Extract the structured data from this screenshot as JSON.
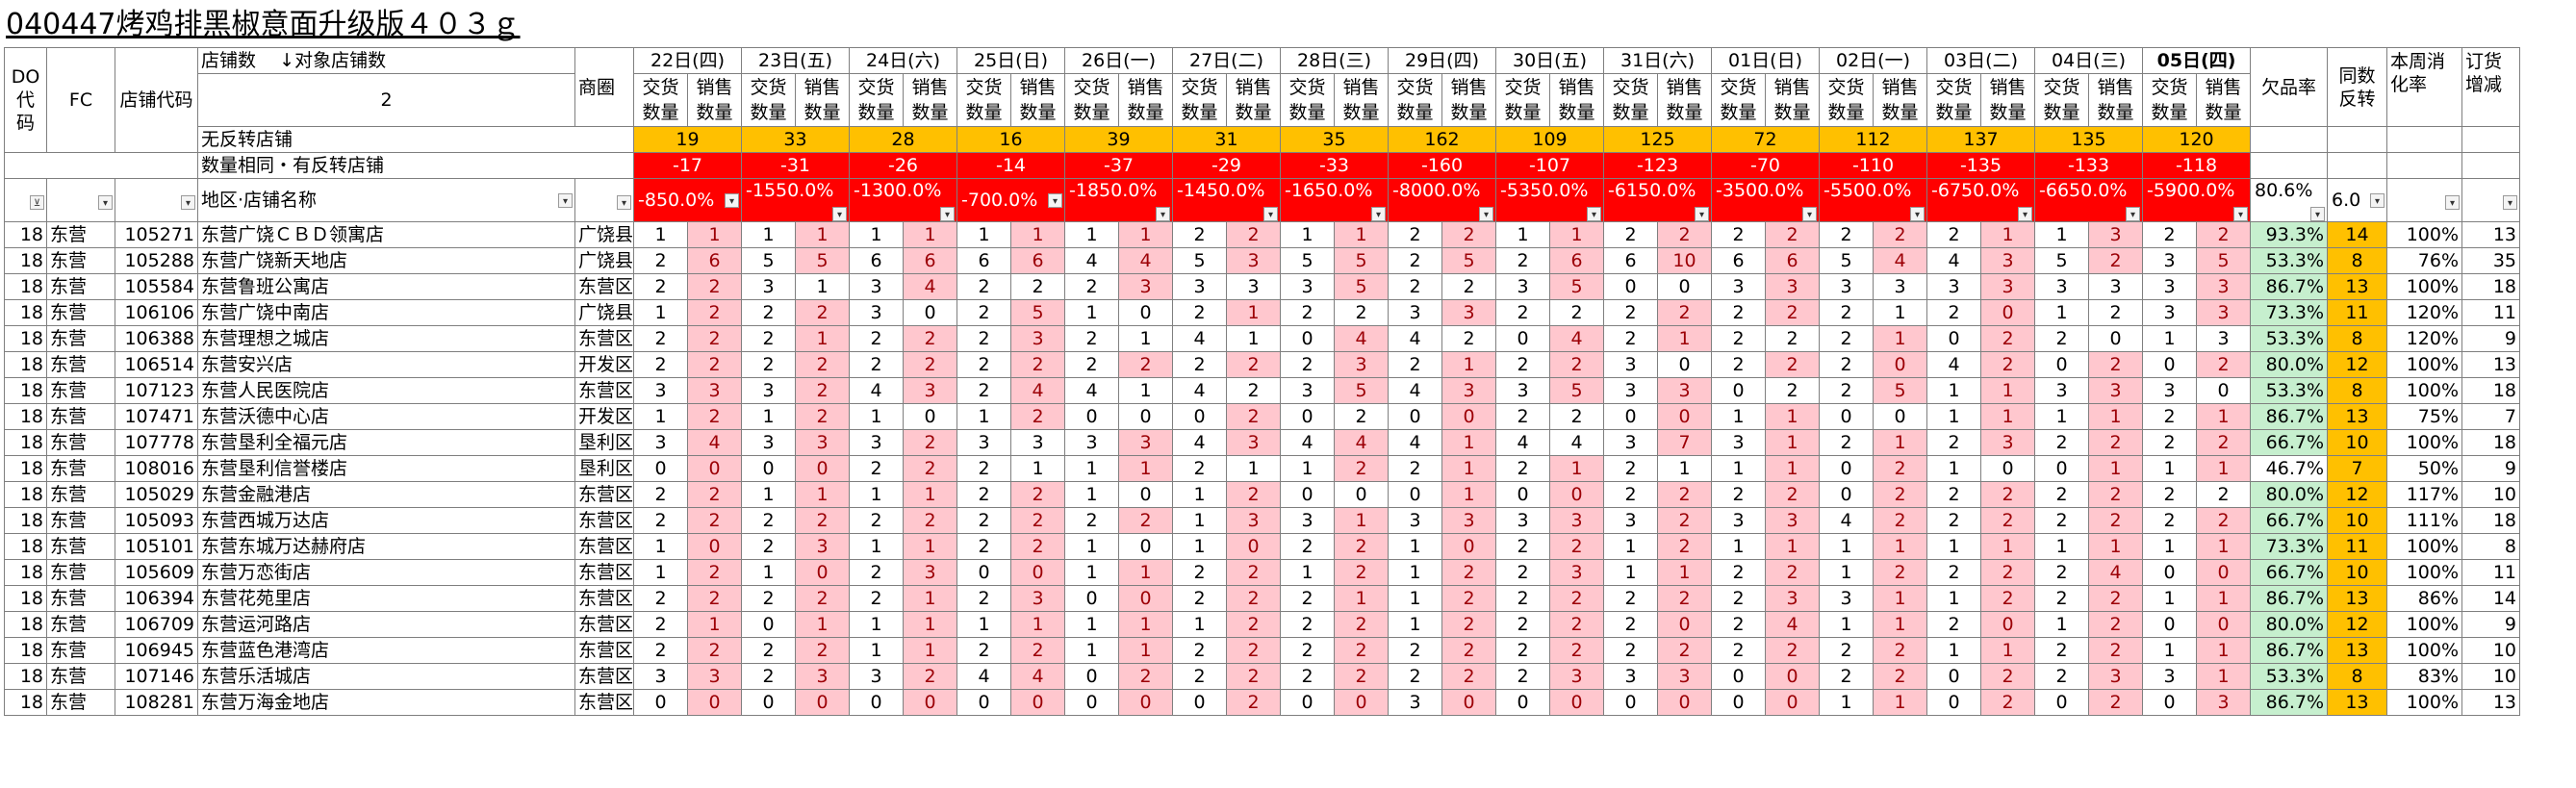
{
  "title": "040447烤鸡排黑椒意面升级版４０３ｇ",
  "header": {
    "do_code": "DO\n代\n码",
    "fc": "FC",
    "store_code": "店铺代码",
    "store_count_label": "店铺数",
    "target_store_label": "↓对象店铺数",
    "store_count_value": "2",
    "no_reversal_label": "无反转店铺",
    "same_qty_label": "数量相同・有反转店铺",
    "region_label": "地区·店铺名称",
    "commerce_area": "商圈",
    "delivery_qty": "交货\n数量",
    "sales_qty": "销售\n数量",
    "defect_rate": "欠品率",
    "same_reversal": "同数\n反转",
    "weekly_rate": "本周消\n化率",
    "order_change": "订货\n增减"
  },
  "dates": [
    "22日(四)",
    "23日(五)",
    "24日(六)",
    "25日(日)",
    "26日(一)",
    "27日(二)",
    "28日(三)",
    "29日(四)",
    "30日(五)",
    "31日(六)",
    "01日(日)",
    "02日(一)",
    "03日(二)",
    "04日(三)",
    "05日(四)"
  ],
  "no_reversal": [
    "19",
    "33",
    "28",
    "16",
    "39",
    "31",
    "35",
    "162",
    "109",
    "125",
    "72",
    "112",
    "137",
    "135",
    "120"
  ],
  "same_qty": [
    "-17",
    "-31",
    "-26",
    "-14",
    "-37",
    "-29",
    "-33",
    "-160",
    "-107",
    "-123",
    "-70",
    "-110",
    "-135",
    "-133",
    "-118"
  ],
  "region_totals": [
    "-850.0%",
    "-1550.0%",
    "-1300.0%",
    "-700.0%",
    "-1850.0%",
    "-1450.0%",
    "-1650.0%",
    "-8000.0%",
    "-5350.0%",
    "-6150.0%",
    "-3500.0%",
    "-5500.0%",
    "-6750.0%",
    "-6650.0%",
    "-5900.0%"
  ],
  "summary_defect": "80.6%",
  "summary_reversal": "6.0",
  "rows": [
    {
      "do": "18",
      "fc": "东营",
      "code": "105271",
      "name": "东营广饶ＣＢＤ领寓店",
      "area": "广饶县",
      "cells": [
        "1",
        "1",
        "1",
        "1",
        "1",
        "1",
        "1",
        "1",
        "1",
        "1",
        "2",
        "2",
        "1",
        "1",
        "2",
        "2",
        "1",
        "1",
        "2",
        "2",
        "2",
        "2",
        "2",
        "2",
        "2",
        "1",
        "1",
        "3",
        "2",
        "2"
      ],
      "defect": "93.3%",
      "rev": "14",
      "rate": "100%",
      "chg": "13"
    },
    {
      "do": "18",
      "fc": "东营",
      "code": "105288",
      "name": "东营广饶新天地店",
      "area": "广饶县",
      "cells": [
        "2",
        "6",
        "5",
        "5",
        "6",
        "6",
        "6",
        "6",
        "4",
        "4",
        "5",
        "3",
        "5",
        "5",
        "2",
        "5",
        "2",
        "6",
        "6",
        "10",
        "6",
        "6",
        "5",
        "4",
        "4",
        "3",
        "5",
        "2",
        "3",
        "5"
      ],
      "defect": "53.3%",
      "rev": "8",
      "rate": "76%",
      "chg": "35"
    },
    {
      "do": "18",
      "fc": "东营",
      "code": "105584",
      "name": "东营鲁班公寓店",
      "area": "东营区",
      "cells": [
        "2",
        "2",
        "3",
        "1",
        "3",
        "4",
        "2",
        "2",
        "2",
        "3",
        "3",
        "3",
        "3",
        "5",
        "2",
        "2",
        "3",
        "5",
        "0",
        "0",
        "3",
        "3",
        "3",
        "3",
        "3",
        "3",
        "3",
        "3",
        "3",
        "3"
      ],
      "defect": "86.7%",
      "rev": "13",
      "rate": "100%",
      "chg": "18"
    },
    {
      "do": "18",
      "fc": "东营",
      "code": "106106",
      "name": "东营广饶中南店",
      "area": "广饶县",
      "cells": [
        "1",
        "2",
        "2",
        "2",
        "3",
        "0",
        "2",
        "5",
        "1",
        "0",
        "2",
        "1",
        "2",
        "2",
        "3",
        "3",
        "2",
        "2",
        "2",
        "2",
        "2",
        "2",
        "2",
        "1",
        "2",
        "0",
        "1",
        "2",
        "3",
        "3"
      ],
      "defect": "73.3%",
      "rev": "11",
      "rate": "120%",
      "chg": "11"
    },
    {
      "do": "18",
      "fc": "东营",
      "code": "106388",
      "name": "东营理想之城店",
      "area": "东营区",
      "cells": [
        "2",
        "2",
        "2",
        "1",
        "2",
        "2",
        "2",
        "3",
        "2",
        "1",
        "4",
        "1",
        "0",
        "4",
        "4",
        "2",
        "0",
        "4",
        "2",
        "1",
        "2",
        "2",
        "2",
        "1",
        "0",
        "2",
        "2",
        "0",
        "1",
        "3"
      ],
      "defect": "53.3%",
      "rev": "8",
      "rate": "120%",
      "chg": "9"
    },
    {
      "do": "18",
      "fc": "东营",
      "code": "106514",
      "name": "东营安兴店",
      "area": "开发区",
      "cells": [
        "2",
        "2",
        "2",
        "2",
        "2",
        "2",
        "2",
        "2",
        "2",
        "2",
        "2",
        "2",
        "2",
        "3",
        "2",
        "1",
        "2",
        "2",
        "3",
        "0",
        "2",
        "2",
        "2",
        "0",
        "4",
        "2",
        "0",
        "2",
        "0",
        "2"
      ],
      "defect": "80.0%",
      "rev": "12",
      "rate": "100%",
      "chg": "13"
    },
    {
      "do": "18",
      "fc": "东营",
      "code": "107123",
      "name": "东营人民医院店",
      "area": "东营区",
      "cells": [
        "3",
        "3",
        "3",
        "2",
        "4",
        "3",
        "2",
        "4",
        "4",
        "1",
        "4",
        "2",
        "3",
        "5",
        "4",
        "3",
        "3",
        "5",
        "3",
        "3",
        "0",
        "2",
        "2",
        "5",
        "1",
        "1",
        "3",
        "3",
        "3",
        "0"
      ],
      "defect": "53.3%",
      "rev": "8",
      "rate": "100%",
      "chg": "18"
    },
    {
      "do": "18",
      "fc": "东营",
      "code": "107471",
      "name": "东营沃德中心店",
      "area": "开发区",
      "cells": [
        "1",
        "2",
        "1",
        "2",
        "1",
        "0",
        "1",
        "2",
        "0",
        "0",
        "0",
        "2",
        "0",
        "2",
        "0",
        "0",
        "2",
        "2",
        "0",
        "0",
        "1",
        "1",
        "0",
        "0",
        "1",
        "1",
        "1",
        "1",
        "2",
        "1"
      ],
      "defect": "86.7%",
      "rev": "13",
      "rate": "75%",
      "chg": "7"
    },
    {
      "do": "18",
      "fc": "东营",
      "code": "107778",
      "name": "东营垦利全福元店",
      "area": "垦利区",
      "cells": [
        "3",
        "4",
        "3",
        "3",
        "3",
        "2",
        "3",
        "3",
        "3",
        "3",
        "4",
        "3",
        "4",
        "4",
        "4",
        "1",
        "4",
        "4",
        "3",
        "7",
        "3",
        "1",
        "2",
        "1",
        "2",
        "3",
        "2",
        "2",
        "2",
        "2"
      ],
      "defect": "66.7%",
      "rev": "10",
      "rate": "100%",
      "chg": "18"
    },
    {
      "do": "18",
      "fc": "东营",
      "code": "108016",
      "name": "东营垦利信誉楼店",
      "area": "垦利区",
      "cells": [
        "0",
        "0",
        "0",
        "0",
        "2",
        "2",
        "2",
        "1",
        "1",
        "1",
        "2",
        "1",
        "1",
        "2",
        "2",
        "1",
        "2",
        "1",
        "2",
        "1",
        "1",
        "1",
        "0",
        "2",
        "1",
        "0",
        "0",
        "1",
        "1",
        "1"
      ],
      "defect": "46.7%",
      "rev": "7",
      "rate": "50%",
      "chg": "9"
    },
    {
      "do": "18",
      "fc": "东营",
      "code": "105029",
      "name": "东营金融港店",
      "area": "东营区",
      "cells": [
        "2",
        "2",
        "1",
        "1",
        "1",
        "1",
        "2",
        "2",
        "1",
        "0",
        "1",
        "2",
        "0",
        "0",
        "0",
        "1",
        "0",
        "0",
        "2",
        "2",
        "2",
        "2",
        "0",
        "2",
        "2",
        "2",
        "2",
        "2",
        "2",
        "2"
      ],
      "defect": "80.0%",
      "rev": "12",
      "rate": "117%",
      "chg": "10"
    },
    {
      "do": "18",
      "fc": "东营",
      "code": "105093",
      "name": "东营西城万达店",
      "area": "东营区",
      "cells": [
        "2",
        "2",
        "2",
        "2",
        "2",
        "2",
        "2",
        "2",
        "2",
        "2",
        "1",
        "3",
        "3",
        "1",
        "3",
        "3",
        "3",
        "3",
        "3",
        "2",
        "3",
        "3",
        "4",
        "2",
        "2",
        "2",
        "2",
        "2",
        "2",
        "2"
      ],
      "defect": "66.7%",
      "rev": "10",
      "rate": "111%",
      "chg": "18"
    },
    {
      "do": "18",
      "fc": "东营",
      "code": "105101",
      "name": "东营东城万达赫府店",
      "area": "东营区",
      "cells": [
        "1",
        "0",
        "2",
        "3",
        "1",
        "1",
        "2",
        "2",
        "1",
        "0",
        "1",
        "0",
        "2",
        "2",
        "1",
        "0",
        "2",
        "2",
        "1",
        "2",
        "1",
        "1",
        "1",
        "1",
        "1",
        "1",
        "1",
        "1",
        "1",
        "1"
      ],
      "defect": "73.3%",
      "rev": "11",
      "rate": "100%",
      "chg": "8"
    },
    {
      "do": "18",
      "fc": "东营",
      "code": "105609",
      "name": "东营万恋街店",
      "area": "东营区",
      "cells": [
        "1",
        "2",
        "1",
        "0",
        "2",
        "3",
        "0",
        "0",
        "1",
        "1",
        "2",
        "2",
        "1",
        "2",
        "1",
        "2",
        "2",
        "3",
        "1",
        "1",
        "2",
        "2",
        "1",
        "2",
        "2",
        "2",
        "2",
        "4",
        "0",
        "0"
      ],
      "defect": "66.7%",
      "rev": "10",
      "rate": "100%",
      "chg": "11"
    },
    {
      "do": "18",
      "fc": "东营",
      "code": "106394",
      "name": "东营花苑里店",
      "area": "东营区",
      "cells": [
        "2",
        "2",
        "2",
        "2",
        "2",
        "1",
        "2",
        "3",
        "0",
        "0",
        "2",
        "2",
        "2",
        "1",
        "1",
        "2",
        "2",
        "2",
        "2",
        "2",
        "2",
        "3",
        "3",
        "1",
        "1",
        "2",
        "2",
        "2",
        "1",
        "1"
      ],
      "defect": "86.7%",
      "rev": "13",
      "rate": "86%",
      "chg": "14"
    },
    {
      "do": "18",
      "fc": "东营",
      "code": "106709",
      "name": "东营运河路店",
      "area": "东营区",
      "cells": [
        "2",
        "1",
        "0",
        "1",
        "1",
        "1",
        "1",
        "1",
        "1",
        "1",
        "1",
        "2",
        "2",
        "2",
        "1",
        "2",
        "2",
        "2",
        "2",
        "0",
        "2",
        "4",
        "1",
        "1",
        "2",
        "0",
        "1",
        "2",
        "0",
        "0"
      ],
      "defect": "80.0%",
      "rev": "12",
      "rate": "100%",
      "chg": "9"
    },
    {
      "do": "18",
      "fc": "东营",
      "code": "106945",
      "name": "东营蓝色港湾店",
      "area": "东营区",
      "cells": [
        "2",
        "2",
        "2",
        "2",
        "1",
        "1",
        "2",
        "2",
        "1",
        "1",
        "2",
        "2",
        "2",
        "2",
        "2",
        "2",
        "2",
        "2",
        "2",
        "2",
        "2",
        "2",
        "2",
        "2",
        "1",
        "1",
        "2",
        "2",
        "1",
        "1"
      ],
      "defect": "86.7%",
      "rev": "13",
      "rate": "100%",
      "chg": "10"
    },
    {
      "do": "18",
      "fc": "东营",
      "code": "107146",
      "name": "东营乐活城店",
      "area": "东营区",
      "cells": [
        "3",
        "3",
        "2",
        "3",
        "3",
        "2",
        "4",
        "4",
        "0",
        "2",
        "2",
        "2",
        "2",
        "2",
        "2",
        "2",
        "2",
        "3",
        "3",
        "3",
        "0",
        "0",
        "2",
        "2",
        "0",
        "2",
        "2",
        "3",
        "3",
        "1"
      ],
      "defect": "53.3%",
      "rev": "8",
      "rate": "83%",
      "chg": "10"
    },
    {
      "do": "18",
      "fc": "东营",
      "code": "108281",
      "name": "东营万海金地店",
      "area": "东营区",
      "cells": [
        "0",
        "0",
        "0",
        "0",
        "0",
        "0",
        "0",
        "0",
        "0",
        "0",
        "0",
        "2",
        "0",
        "0",
        "3",
        "0",
        "0",
        "0",
        "0",
        "0",
        "0",
        "0",
        "1",
        "1",
        "0",
        "2",
        "0",
        "2",
        "0",
        "3"
      ],
      "defect": "86.7%",
      "rev": "13",
      "rate": "100%",
      "chg": "13"
    }
  ],
  "pink_cells": [
    [
      1,
      3,
      5,
      7,
      9,
      11,
      13,
      15,
      17,
      19,
      21,
      23,
      25,
      27,
      29
    ],
    [
      1,
      3,
      5,
      7,
      9,
      11,
      13,
      15,
      17,
      19,
      21,
      23,
      25,
      27,
      29
    ],
    [
      1,
      5,
      9,
      13,
      17,
      21,
      25,
      29
    ],
    [
      1,
      3,
      7,
      11,
      15,
      19,
      21,
      25,
      29
    ],
    [
      1,
      3,
      5,
      7,
      13,
      17,
      19,
      23,
      25
    ],
    [
      1,
      3,
      5,
      7,
      9,
      11,
      13,
      15,
      17,
      21,
      23,
      25,
      27,
      29
    ],
    [
      1,
      3,
      5,
      7,
      13,
      15,
      17,
      19,
      23,
      25,
      27
    ],
    [
      1,
      3,
      7,
      11,
      15,
      19,
      21,
      25,
      27,
      29
    ],
    [
      1,
      3,
      5,
      9,
      11,
      13,
      15,
      19,
      21,
      23,
      25,
      27,
      29
    ],
    [
      1,
      3,
      5,
      9,
      13,
      15,
      17,
      21,
      23,
      27,
      29
    ],
    [
      1,
      3,
      5,
      7,
      11,
      15,
      17,
      19,
      21,
      23,
      25,
      27
    ],
    [
      1,
      3,
      5,
      7,
      9,
      11,
      13,
      15,
      17,
      19,
      21,
      23,
      25,
      27,
      29
    ],
    [
      1,
      3,
      5,
      7,
      11,
      13,
      15,
      17,
      19,
      21,
      23,
      25,
      27,
      29
    ],
    [
      1,
      3,
      5,
      7,
      9,
      11,
      13,
      15,
      17,
      19,
      21,
      23,
      25,
      27,
      29
    ],
    [
      1,
      3,
      5,
      7,
      9,
      11,
      13,
      15,
      17,
      19,
      21,
      23,
      25,
      27,
      29
    ],
    [
      1,
      3,
      5,
      7,
      9,
      11,
      13,
      15,
      17,
      19,
      21,
      23,
      25,
      27,
      29
    ],
    [
      1,
      3,
      5,
      7,
      9,
      11,
      13,
      15,
      17,
      19,
      21,
      23,
      25,
      27,
      29
    ],
    [
      1,
      3,
      5,
      7,
      9,
      11,
      13,
      15,
      17,
      19,
      21,
      23,
      25,
      27,
      29
    ],
    [
      1,
      3,
      5,
      7,
      9,
      11,
      13,
      15,
      17,
      19,
      21,
      23,
      25,
      27,
      29
    ]
  ],
  "colors": {
    "yellow": "#ffc000",
    "red": "#ff0000",
    "pink": "#ffc7ce",
    "green": "#c6efce",
    "orange": "#ffc000"
  },
  "icons": {
    "filter": "filter-dropdown-icon",
    "filter_active": "filter-active-icon"
  }
}
